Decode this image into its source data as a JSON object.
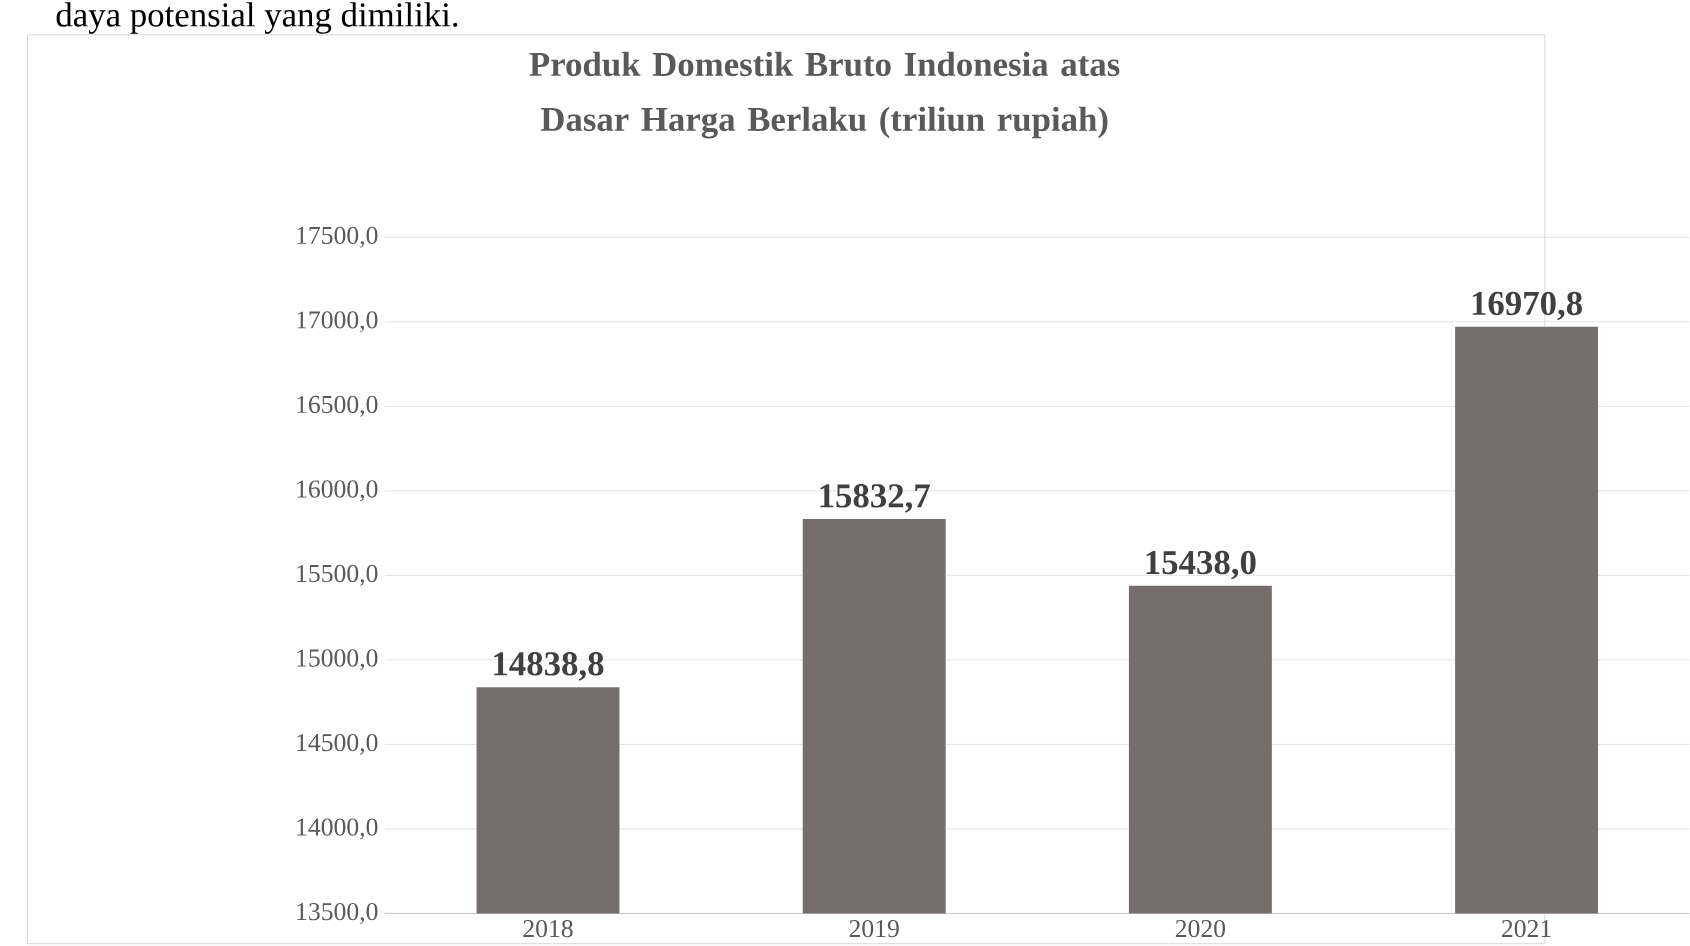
{
  "chart_data": {
    "type": "bar",
    "title": "Produk Domestik Bruto Indonesia  atas Dasar Harga Berlaku (triliun rupiah)",
    "categories": [
      "2018",
      "2019",
      "2020",
      "2021"
    ],
    "values": [
      14838.8,
      15832.7,
      15438.0,
      16970.8
    ],
    "value_labels": [
      "14838,8",
      "15832,7",
      "15438,0",
      "16970,8"
    ],
    "color": "#766e6c",
    "ylim": [
      13500,
      17500
    ],
    "yticks": [
      {
        "value": 13500,
        "label": "13500,0"
      },
      {
        "value": 14000,
        "label": "14000,0"
      },
      {
        "value": 14500,
        "label": "14500,0"
      },
      {
        "value": 15000,
        "label": "15000,0"
      },
      {
        "value": 15500,
        "label": "15500,0"
      },
      {
        "value": 16000,
        "label": "16000,0"
      },
      {
        "value": 16500,
        "label": "16500,0"
      },
      {
        "value": 17000,
        "label": "17000,0"
      },
      {
        "value": 17500,
        "label": "17500,0"
      }
    ],
    "grid": "y",
    "annotations": [
      "daya potensial yang dimiliki."
    ]
  }
}
